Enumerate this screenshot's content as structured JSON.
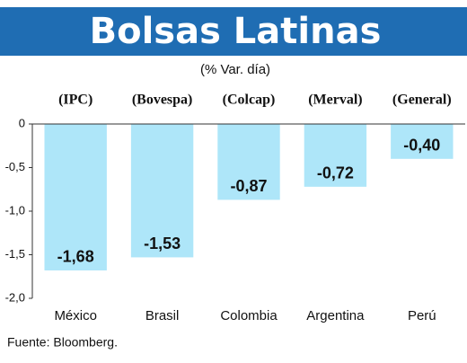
{
  "chart_data": {
    "type": "bar",
    "title": "Bolsas Latinas",
    "subtitle": "(% Var. día)",
    "categories": [
      "México",
      "Brasil",
      "Colombia",
      "Argentina",
      "Perú"
    ],
    "indices": [
      "(IPC)",
      "(Bovespa)",
      "(Colcap)",
      "(Merval)",
      "(General)"
    ],
    "values": [
      -1.68,
      -1.53,
      -0.87,
      -0.72,
      -0.4
    ],
    "value_labels": [
      "-1,68",
      "-1,53",
      "-0,87",
      "-0,72",
      "-0,40"
    ],
    "color": "#aee6f9",
    "ylim": [
      -2.0,
      0
    ],
    "yticks": [
      0,
      {
        "value": -0.5,
        "label": "-0,5"
      },
      {
        "value": -1.0,
        "label": "-1,0"
      },
      {
        "value": -1.5,
        "label": "-1,5"
      },
      {
        "value": -2.0,
        "label": "-2,0"
      }
    ],
    "grid": false,
    "source": "Fuente: Bloomberg."
  }
}
